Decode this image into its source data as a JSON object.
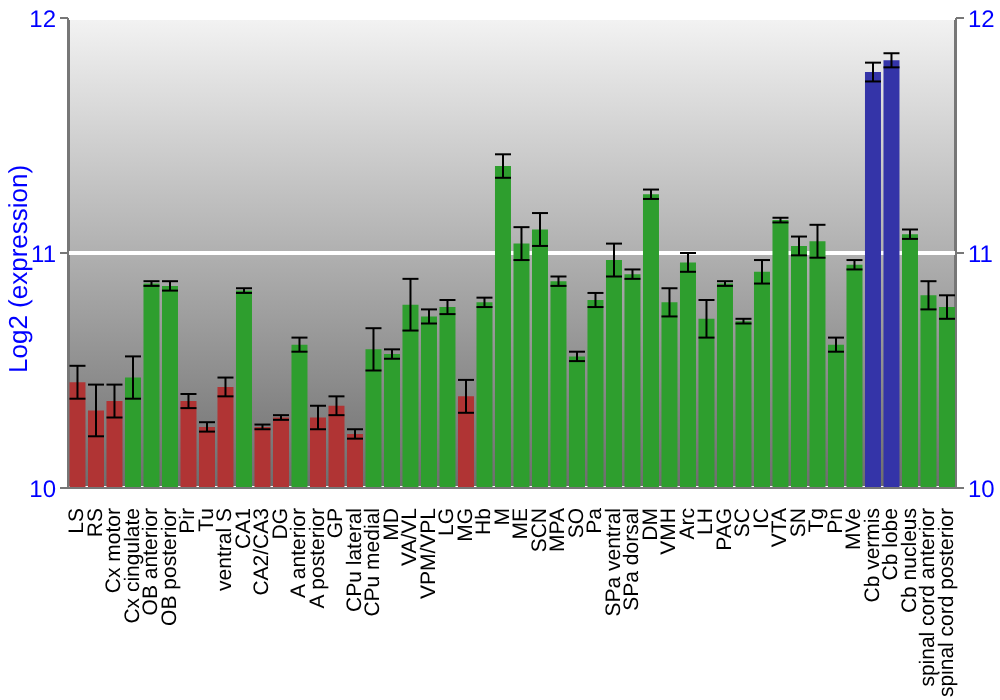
{
  "chart_data": {
    "type": "bar",
    "ylabel": "Log2 (expression)",
    "categories": [
      "LS",
      "RS",
      "Cx motor",
      "Cx cingulate",
      "OB anterior",
      "OB posterior",
      "Pir",
      "Tu",
      "ventral S",
      "CA1",
      "CA2/CA3",
      "DG",
      "A anterior",
      "A posterior",
      "GP",
      "CPu lateral",
      "CPu medial",
      "MD",
      "VA/VL",
      "VPM/VPL",
      "LG",
      "MG",
      "Hb",
      "M",
      "ME",
      "SCN",
      "MPA",
      "SO",
      "Pa",
      "SPa ventral",
      "SPa dorsal",
      "DM",
      "VMH",
      "Arc",
      "LH",
      "PAG",
      "SC",
      "IC",
      "VTA",
      "SN",
      "Tg",
      "Pn",
      "MVe",
      "Cb vermis",
      "Cb lobe",
      "Cb nucleus",
      "spinal cord anterior",
      "spinal cord posterior"
    ],
    "values": [
      10.45,
      10.33,
      10.37,
      10.47,
      10.87,
      10.86,
      10.37,
      10.26,
      10.43,
      10.84,
      10.26,
      10.3,
      10.61,
      10.3,
      10.35,
      10.23,
      10.59,
      10.57,
      10.78,
      10.73,
      10.77,
      10.39,
      10.79,
      11.37,
      11.04,
      11.1,
      10.88,
      10.56,
      10.8,
      10.97,
      10.91,
      11.25,
      10.79,
      10.96,
      10.72,
      10.87,
      10.71,
      10.92,
      11.14,
      11.03,
      11.05,
      10.61,
      10.95,
      11.77,
      11.82,
      11.08,
      10.82,
      10.77
    ],
    "errors": [
      0.07,
      0.11,
      0.07,
      0.09,
      0.01,
      0.02,
      0.03,
      0.02,
      0.04,
      0.01,
      0.01,
      0.01,
      0.03,
      0.05,
      0.04,
      0.02,
      0.09,
      0.02,
      0.11,
      0.03,
      0.03,
      0.07,
      0.02,
      0.05,
      0.07,
      0.07,
      0.02,
      0.02,
      0.03,
      0.07,
      0.02,
      0.02,
      0.06,
      0.04,
      0.08,
      0.01,
      0.01,
      0.05,
      0.01,
      0.04,
      0.07,
      0.03,
      0.02,
      0.04,
      0.03,
      0.02,
      0.06,
      0.05
    ],
    "colors": [
      "#b03434",
      "#b03434",
      "#b03434",
      "#2e9e2e",
      "#2e9e2e",
      "#2e9e2e",
      "#b03434",
      "#b03434",
      "#b03434",
      "#2e9e2e",
      "#b03434",
      "#b03434",
      "#2e9e2e",
      "#b03434",
      "#b03434",
      "#b03434",
      "#2e9e2e",
      "#2e9e2e",
      "#2e9e2e",
      "#2e9e2e",
      "#2e9e2e",
      "#b03434",
      "#2e9e2e",
      "#2e9e2e",
      "#2e9e2e",
      "#2e9e2e",
      "#2e9e2e",
      "#2e9e2e",
      "#2e9e2e",
      "#2e9e2e",
      "#2e9e2e",
      "#2e9e2e",
      "#2e9e2e",
      "#2e9e2e",
      "#2e9e2e",
      "#2e9e2e",
      "#2e9e2e",
      "#2e9e2e",
      "#2e9e2e",
      "#2e9e2e",
      "#2e9e2e",
      "#2e9e2e",
      "#2e9e2e",
      "#3434a8",
      "#3434a8",
      "#2e9e2e",
      "#2e9e2e",
      "#2e9e2e"
    ],
    "ylim": [
      10,
      12
    ],
    "yticks": [
      10,
      11,
      12
    ],
    "y2lim": [
      10,
      12
    ],
    "y2ticks": [
      10,
      11,
      12
    ],
    "grid": "y",
    "legend": false
  }
}
